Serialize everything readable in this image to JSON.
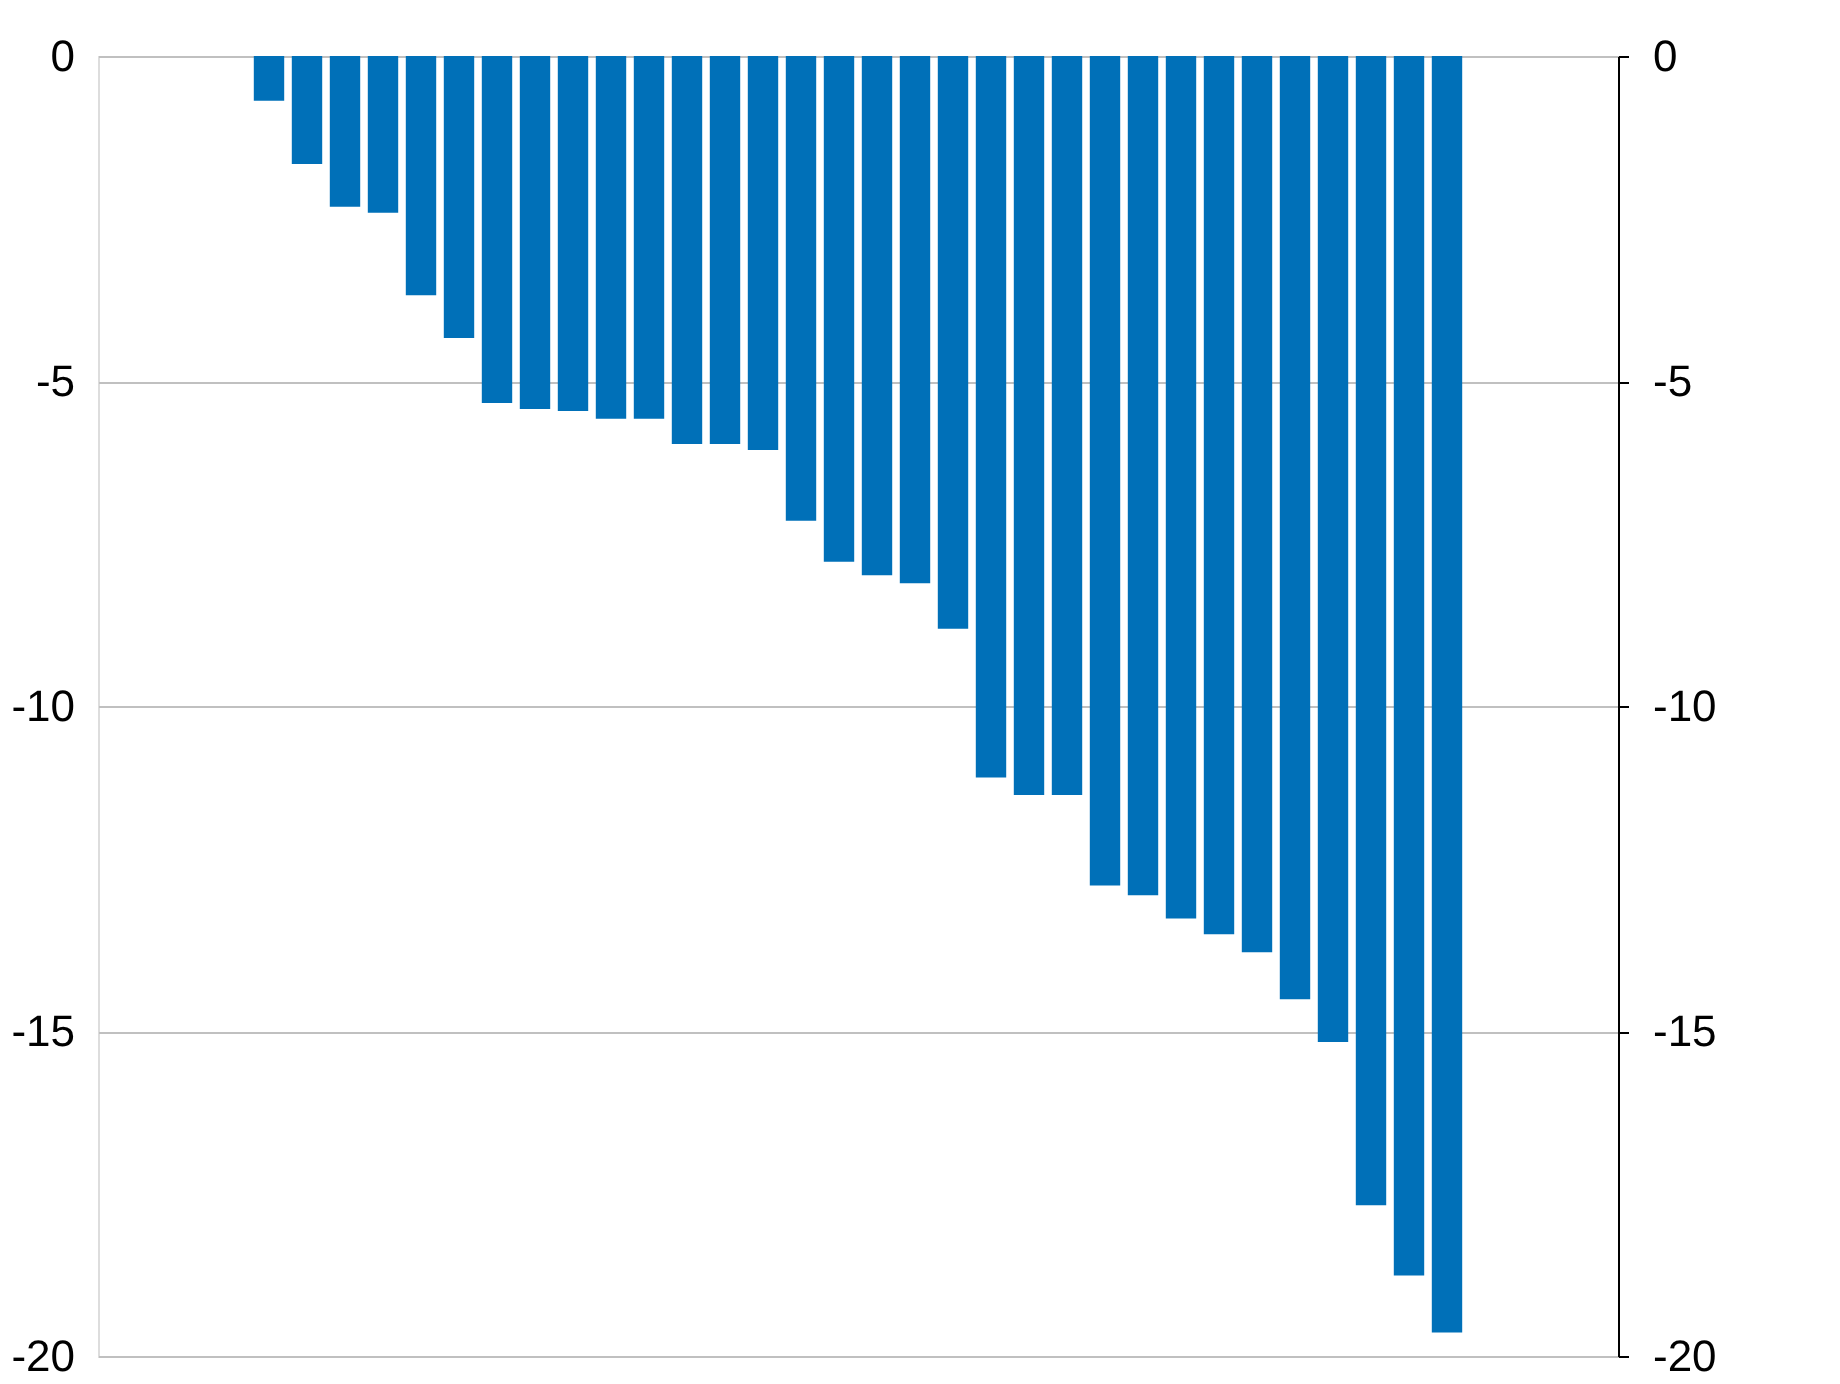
{
  "chart_data": {
    "type": "bar",
    "categories": [
      null,
      null,
      null,
      null,
      null,
      null,
      null,
      null,
      null,
      null,
      null,
      null,
      null,
      null,
      null,
      null,
      null,
      null,
      null,
      null,
      null,
      null,
      null,
      null,
      null,
      null,
      null,
      null,
      null,
      null,
      null,
      null,
      null,
      null,
      null,
      null,
      null,
      null,
      null,
      null
    ],
    "values": [
      null,
      null,
      null,
      null,
      -0.69,
      -1.66,
      -2.32,
      -2.41,
      -3.68,
      -4.34,
      -5.34,
      -5.43,
      -5.46,
      -5.58,
      -5.58,
      -5.97,
      -5.97,
      -6.06,
      -7.15,
      -7.78,
      -7.99,
      -8.11,
      -8.81,
      -11.1,
      -11.37,
      -11.37,
      -12.76,
      -12.91,
      -13.27,
      -13.51,
      -13.79,
      -14.51,
      -15.17,
      -17.68,
      -18.76,
      -19.64,
      null,
      null,
      null,
      null
    ],
    "color": "#0070b8",
    "ylim": [
      -20,
      0
    ],
    "yticks": [
      -20,
      -15,
      -10,
      -5,
      0
    ],
    "y2lim": [
      -20,
      0
    ],
    "y2ticks": [
      -20,
      -15,
      -10,
      -5,
      0
    ],
    "grid": "y",
    "tick_labels": "y"
  }
}
